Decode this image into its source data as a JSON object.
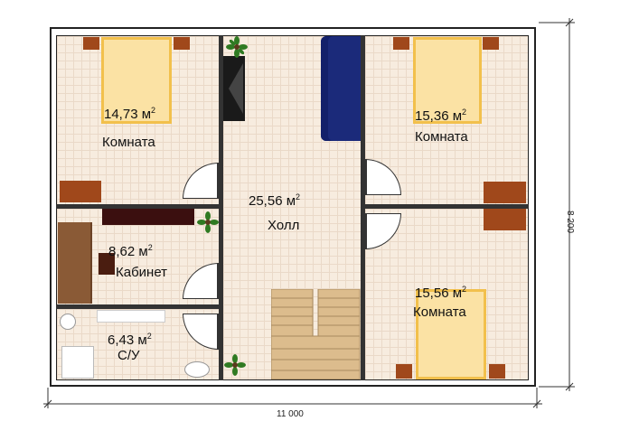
{
  "rooms": {
    "bedroom_top_left": {
      "area": "14,73 м",
      "sup": "2",
      "name": "Комната"
    },
    "bedroom_top_right": {
      "area": "15,36 м",
      "sup": "2",
      "name": "Комната"
    },
    "bedroom_bottom_right": {
      "area": "15,56 м",
      "sup": "2",
      "name": "Комната"
    },
    "hall": {
      "area": "25,56 м",
      "sup": "2",
      "name": "Холл"
    },
    "study": {
      "area": "8,62 м",
      "sup": "2",
      "name": "Кабинет"
    },
    "bathroom": {
      "area": "6,43 м",
      "sup": "2",
      "name": "С/У"
    }
  },
  "dimensions": {
    "width": "11 000",
    "height": "8 200"
  },
  "colors": {
    "floor": "#f7ecdf",
    "wall": "#222222",
    "bed": "#fbe2a4",
    "wood": "#a0481b",
    "sofa": "#1b2a7a",
    "stairs": "#d8b98b"
  },
  "icons": [
    "plant-icon",
    "tv-icon",
    "sofa-icon",
    "toilet-icon",
    "sink-icon",
    "shower-icon"
  ]
}
